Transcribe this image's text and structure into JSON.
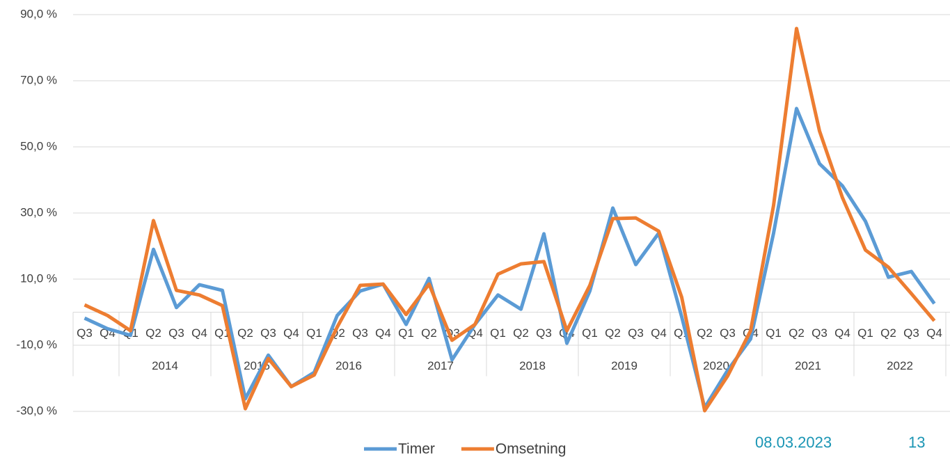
{
  "chart_data": {
    "type": "line",
    "groups": [
      {
        "year": null,
        "quarters": [
          "Q3",
          "Q4"
        ]
      },
      {
        "year": "2014",
        "quarters": [
          "Q1",
          "Q2",
          "Q3",
          "Q4"
        ]
      },
      {
        "year": "2015",
        "quarters": [
          "Q1",
          "Q2",
          "Q3",
          "Q4"
        ]
      },
      {
        "year": "2016",
        "quarters": [
          "Q1",
          "Q2",
          "Q3",
          "Q4"
        ]
      },
      {
        "year": "2017",
        "quarters": [
          "Q1",
          "Q2",
          "Q3",
          "Q4"
        ]
      },
      {
        "year": "2018",
        "quarters": [
          "Q1",
          "Q2",
          "Q3",
          "Q4"
        ]
      },
      {
        "year": "2019",
        "quarters": [
          "Q1",
          "Q2",
          "Q3",
          "Q4"
        ]
      },
      {
        "year": "2020",
        "quarters": [
          "Q1",
          "Q2",
          "Q3",
          "Q4"
        ]
      },
      {
        "year": "2021",
        "quarters": [
          "Q1",
          "Q2",
          "Q3",
          "Q4"
        ]
      },
      {
        "year": "2022",
        "quarters": [
          "Q1",
          "Q2",
          "Q3",
          "Q4"
        ]
      }
    ],
    "series": [
      {
        "name": "Timer",
        "color": "#5b9bd5",
        "values": [
          -1.8,
          -5,
          -7,
          19,
          1.4,
          8.3,
          6.6,
          -26.2,
          -13,
          -22.5,
          -18.2,
          -1,
          6.4,
          8.5,
          -3.7,
          10.2,
          -14.4,
          -3.7,
          5.2,
          0.9,
          23.7,
          -9.4,
          6.4,
          31.5,
          14.4,
          23.9,
          -1.4,
          -28.9,
          -17.6,
          -8.1,
          23.9,
          61.6,
          44.9,
          38.2,
          27.5,
          10.6,
          12.3,
          2.6
        ]
      },
      {
        "name": "Omsetning",
        "color": "#ed7d31",
        "values": [
          2.2,
          -1,
          -5.6,
          27.7,
          6.6,
          5.2,
          2,
          -29.2,
          -14,
          -22.5,
          -19,
          -4.5,
          8.1,
          8.5,
          -0.7,
          8.5,
          -8.5,
          -3.7,
          11.5,
          14.6,
          15.3,
          -5.6,
          8.1,
          28.3,
          28.5,
          24.5,
          4.5,
          -29.8,
          -19.3,
          -5.6,
          32.3,
          85.8,
          54.8,
          34.6,
          18.8,
          13.6,
          5.6,
          -2.6
        ]
      }
    ],
    "ylim": [
      -30,
      90
    ],
    "yticks": [
      {
        "value": -30,
        "label": "-30,0 %"
      },
      {
        "value": -10,
        "label": "-10,0 %"
      },
      {
        "value": 10,
        "label": "10,0 %"
      },
      {
        "value": 30,
        "label": "30,0 %"
      },
      {
        "value": 50,
        "label": "50,0 %"
      },
      {
        "value": 70,
        "label": "70,0 %"
      },
      {
        "value": 90,
        "label": "90,0 %"
      }
    ],
    "grid": true,
    "legend": "bottom"
  },
  "footer": {
    "date": "08.03.2023",
    "page": "13"
  }
}
